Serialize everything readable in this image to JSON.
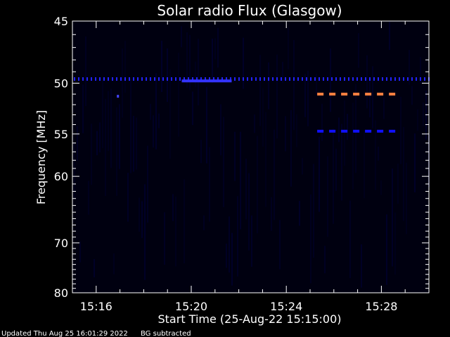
{
  "chart_data": {
    "type": "heatmap",
    "title": "Solar radio Flux (Glasgow)",
    "xlabel": "Start Time (25-Aug-22 15:15:00)",
    "ylabel": "Frequency [MHz]",
    "x_range_minutes": [
      15.0,
      30.0
    ],
    "x_ticks": [
      {
        "label": "15:16",
        "minutes": 16
      },
      {
        "label": "15:20",
        "minutes": 20
      },
      {
        "label": "15:24",
        "minutes": 24
      },
      {
        "label": "15:28",
        "minutes": 28
      }
    ],
    "y_range_mhz": [
      45,
      80
    ],
    "y_ticks": [
      45,
      50,
      55,
      60,
      70,
      80
    ],
    "y_scale": "reciprocal",
    "colormap": [
      "#000010",
      "#00003a",
      "#0000ff",
      "#ff8040"
    ],
    "features": [
      {
        "name": "dotted band",
        "freq_mhz": 49.6,
        "t_start_min": 15.0,
        "t_end_min": 30.0,
        "color": "#2222ff",
        "style": "dotted"
      },
      {
        "name": "dense segment",
        "freq_mhz": 49.8,
        "t_start_min": 19.6,
        "t_end_min": 21.7,
        "color": "#3333ff",
        "style": "solid"
      },
      {
        "name": "orange dashes",
        "freq_mhz": 51.0,
        "t_start_min": 25.3,
        "t_end_min": 28.5,
        "color": "#ff8040",
        "style": "dashed"
      },
      {
        "name": "blue dashes",
        "freq_mhz": 54.7,
        "t_start_min": 25.3,
        "t_end_min": 28.5,
        "color": "#1010ff",
        "style": "dashed"
      },
      {
        "name": "spot",
        "freq_mhz": 51.2,
        "t_start_min": 16.9,
        "t_end_min": 17.0,
        "color": "#4444ff",
        "style": "point"
      }
    ]
  },
  "footer": {
    "updated": "Updated Thu Aug 25 16:01:29 2022",
    "note": "BG subtracted"
  }
}
